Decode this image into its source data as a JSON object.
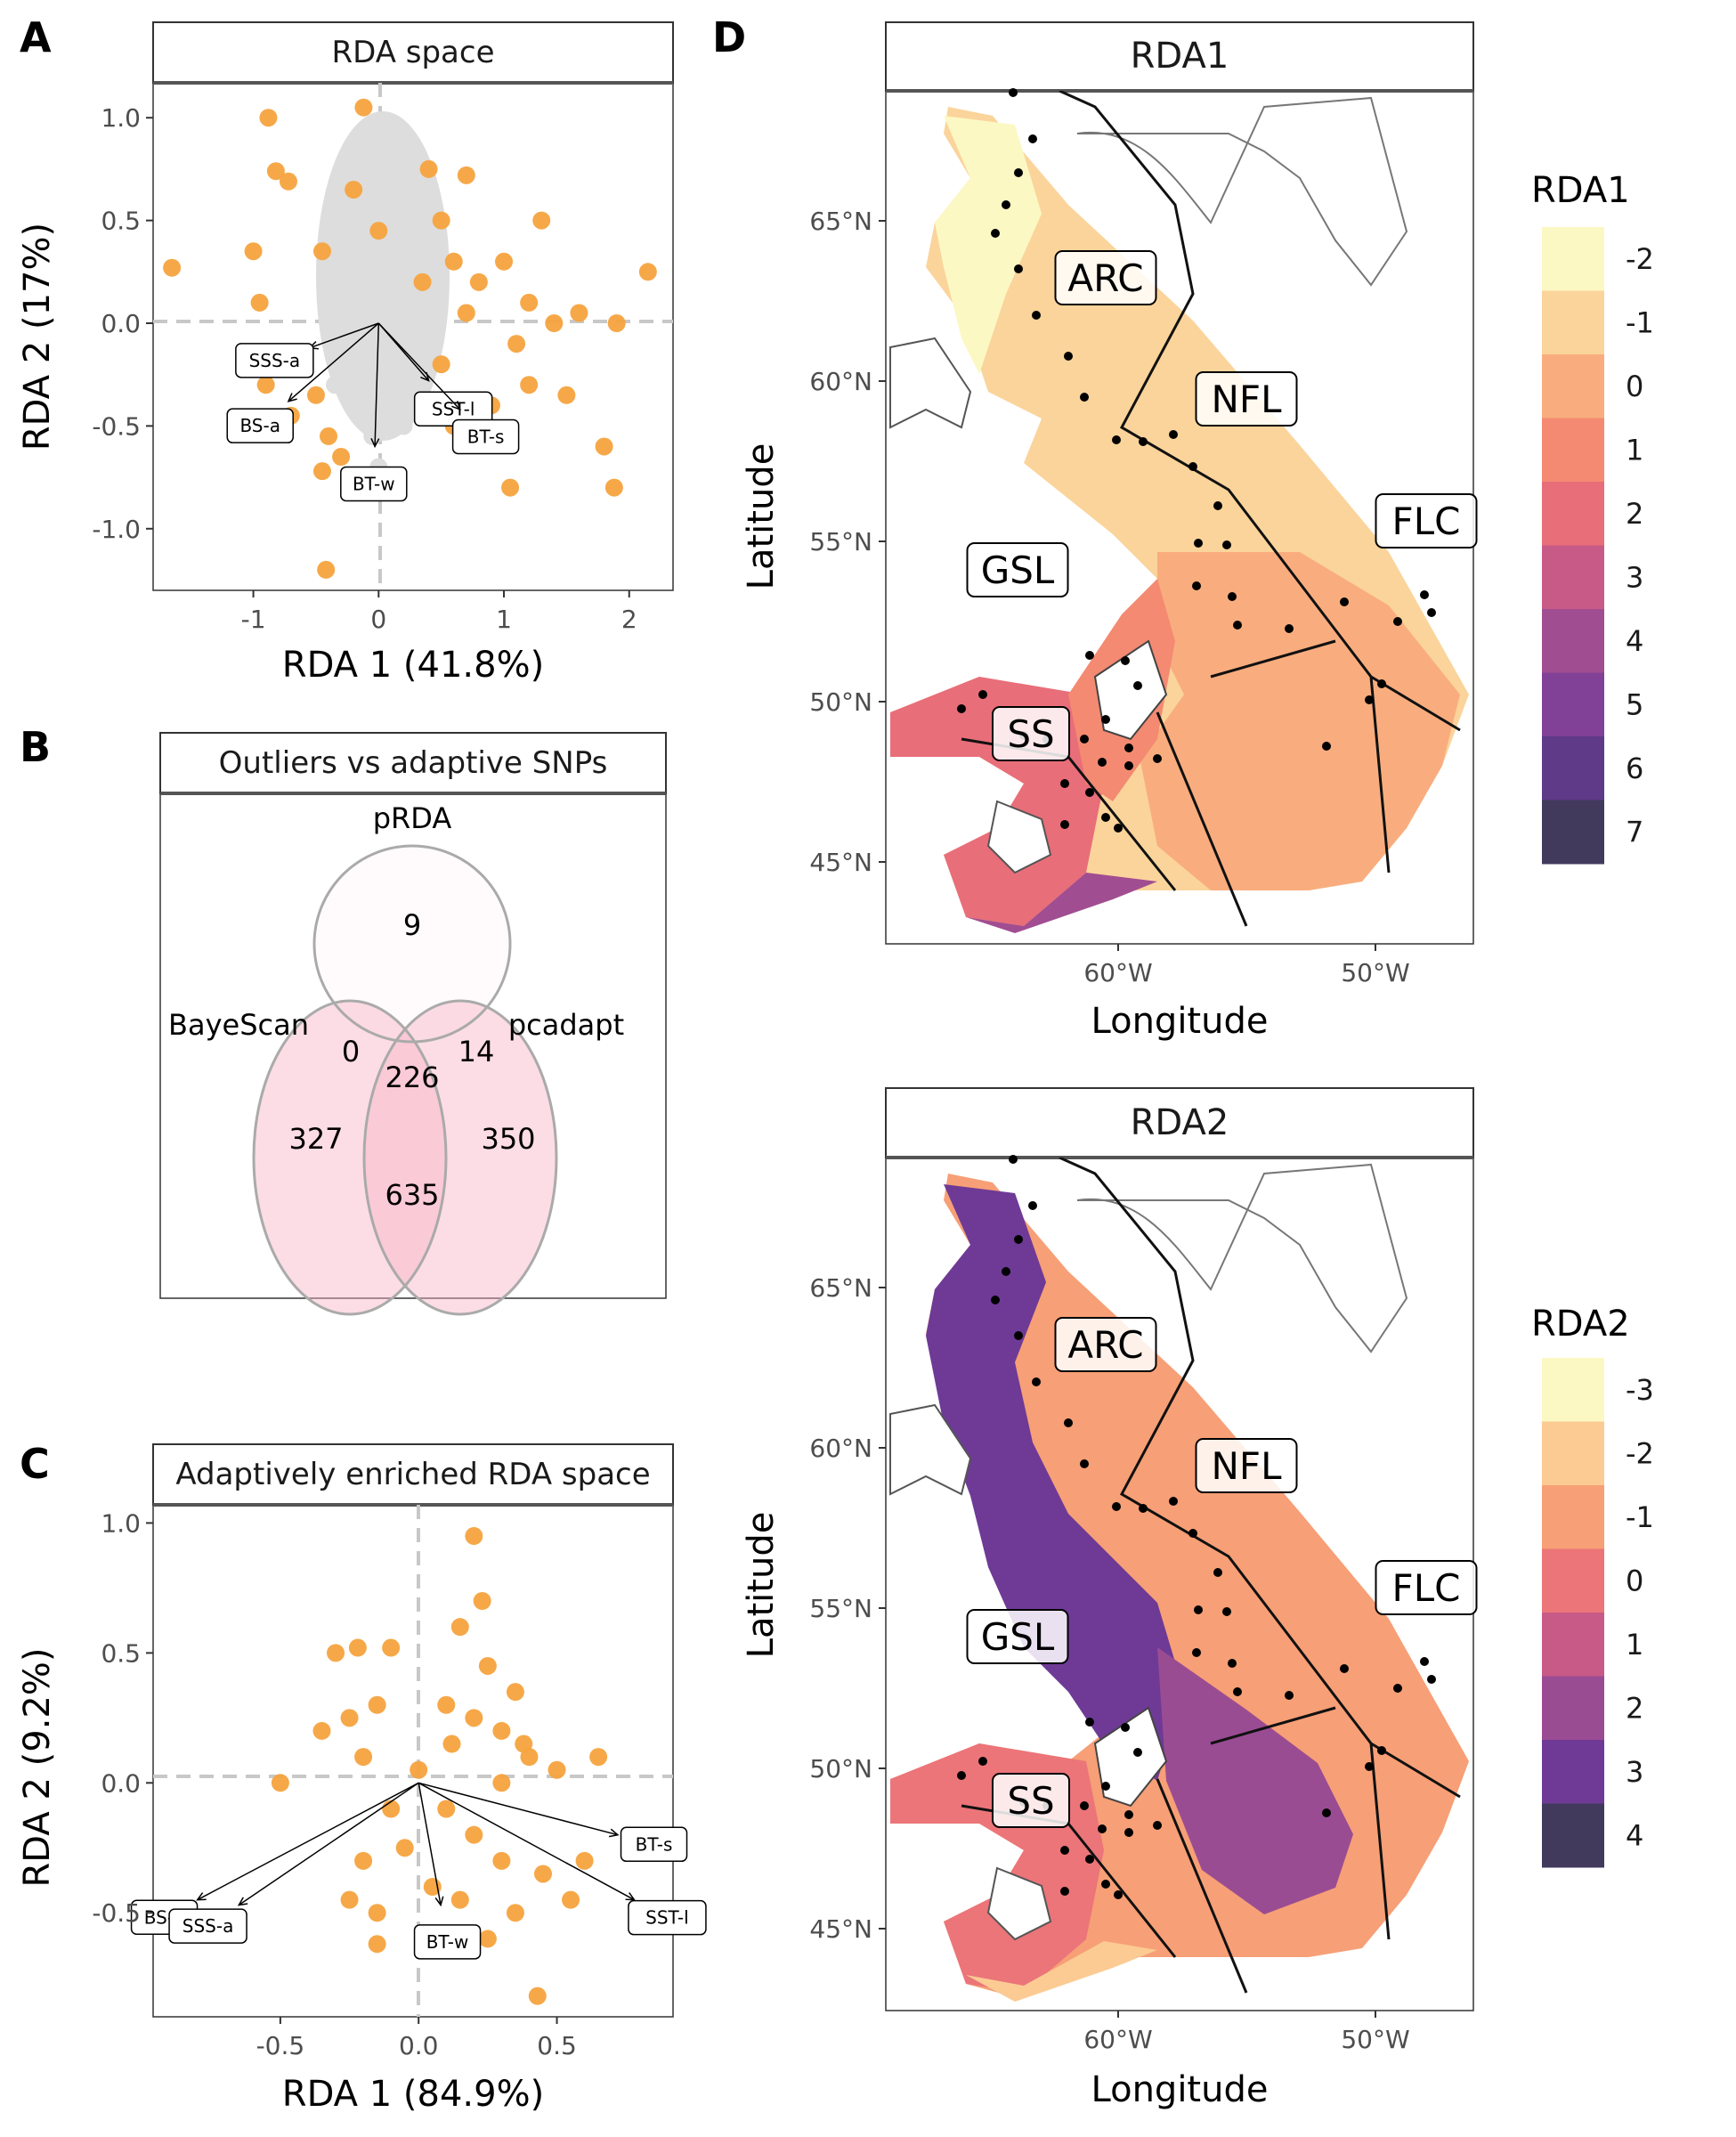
{
  "panel_letters": {
    "a": "A",
    "b": "B",
    "c": "C",
    "d": "D"
  },
  "colors": {
    "outlier": "#F5A33E",
    "neutral": "#DDDDDD",
    "venn_pink": "#F8B4C6",
    "land": "#ffffff",
    "ocean_bg": "#ffffff"
  },
  "chart_data": [
    {
      "id": "A",
      "type": "scatter",
      "title": "RDA space",
      "xlabel": "RDA 1 (41.8%)",
      "ylabel": "RDA 2 (17%)",
      "xlim": [
        -1.8,
        2.35
      ],
      "ylim": [
        -1.3,
        1.17
      ],
      "xticks": [
        "-1",
        "0",
        "1",
        "2"
      ],
      "xtick_values": [
        -1,
        0,
        1,
        2
      ],
      "yticks": [
        "-1.0",
        "-0.5",
        "0.0",
        "0.5",
        "1.0"
      ],
      "ytick_values": [
        -1.0,
        -0.5,
        0.0,
        0.5,
        1.0
      ],
      "grid": false,
      "series": [
        {
          "name": "",
          "role": "neutral",
          "points": [
            [
              0.0,
              0.1
            ],
            [
              0.1,
              -0.2
            ],
            [
              -0.2,
              0.3
            ],
            [
              0.2,
              0.4
            ],
            [
              -0.1,
              -0.4
            ],
            [
              0.05,
              0.55
            ],
            [
              -0.05,
              -0.55
            ],
            [
              0.15,
              0.0
            ],
            [
              -0.25,
              -0.1
            ],
            [
              0.25,
              -0.3
            ],
            [
              -0.15,
              0.6
            ],
            [
              0.3,
              0.2
            ],
            [
              -0.3,
              0.2
            ],
            [
              0.1,
              0.7
            ],
            [
              -0.1,
              0.8
            ],
            [
              0.2,
              -0.5
            ],
            [
              0.0,
              -0.7
            ],
            [
              0.1,
              0.9
            ],
            [
              -0.35,
              -0.3
            ],
            [
              0.35,
              0.5
            ]
          ]
        },
        {
          "name": "",
          "role": "outlier",
          "points": [
            [
              -1.65,
              0.27
            ],
            [
              -0.88,
              1.0
            ],
            [
              -0.82,
              0.74
            ],
            [
              -0.72,
              0.69
            ],
            [
              -0.45,
              0.35
            ],
            [
              -1.0,
              0.35
            ],
            [
              -0.95,
              0.1
            ],
            [
              -0.9,
              -0.3
            ],
            [
              -0.7,
              -0.45
            ],
            [
              -0.6,
              -0.15
            ],
            [
              -0.5,
              -0.35
            ],
            [
              -0.4,
              -0.55
            ],
            [
              -0.3,
              -0.65
            ],
            [
              -0.45,
              -0.72
            ],
            [
              -0.42,
              -1.2
            ],
            [
              0.4,
              0.75
            ],
            [
              0.7,
              0.72
            ],
            [
              0.5,
              0.5
            ],
            [
              0.6,
              0.3
            ],
            [
              0.8,
              0.2
            ],
            [
              1.0,
              0.3
            ],
            [
              1.2,
              0.1
            ],
            [
              1.4,
              0.0
            ],
            [
              1.6,
              0.05
            ],
            [
              1.9,
              0.0
            ],
            [
              2.15,
              0.25
            ],
            [
              1.3,
              0.5
            ],
            [
              1.1,
              -0.1
            ],
            [
              0.9,
              -0.4
            ],
            [
              1.2,
              -0.3
            ],
            [
              1.5,
              -0.35
            ],
            [
              1.8,
              -0.6
            ],
            [
              1.88,
              -0.8
            ],
            [
              1.05,
              -0.8
            ],
            [
              0.6,
              -0.5
            ],
            [
              0.5,
              -0.2
            ],
            [
              0.7,
              0.05
            ],
            [
              0.35,
              0.2
            ],
            [
              -0.12,
              1.05
            ],
            [
              -0.2,
              0.65
            ],
            [
              0.0,
              0.45
            ]
          ]
        }
      ],
      "arrows": [
        {
          "name": "SSS-a",
          "label": "SSS-a",
          "end": [
            -0.55,
            -0.12
          ]
        },
        {
          "name": "BS-a",
          "label": "BS-a",
          "end": [
            -0.72,
            -0.38
          ]
        },
        {
          "name": "BT-w",
          "label": "BT-w",
          "end": [
            -0.03,
            -0.6
          ]
        },
        {
          "name": "SST-l",
          "label": "SST-l",
          "end": [
            0.4,
            -0.28
          ]
        },
        {
          "name": "BT-s",
          "label": "BT-s",
          "end": [
            0.65,
            -0.42
          ]
        }
      ]
    },
    {
      "id": "B",
      "type": "venn",
      "title": "Outliers vs adaptive SNPs",
      "sets": [
        "pRDA",
        "BayeScan",
        "pcadapt"
      ],
      "regions": {
        "pRDA_only": "9",
        "BayeScan_only": "327",
        "pcadapt_only": "350",
        "pRDA_BayeScan": "0",
        "pRDA_pcadapt": "14",
        "BayeScan_pcadapt": "635",
        "all_three": "226"
      }
    },
    {
      "id": "C",
      "type": "scatter",
      "title": "Adaptively enriched RDA space",
      "xlabel": "RDA 1 (84.9%)",
      "ylabel": "RDA 2 (9.2%)",
      "xlim": [
        -0.96,
        0.92
      ],
      "ylim": [
        -0.9,
        1.07
      ],
      "xticks": [
        "-0.5",
        "0.0",
        "0.5"
      ],
      "xtick_values": [
        -0.5,
        0.0,
        0.5
      ],
      "yticks": [
        "-0.5",
        "0.0",
        "0.5",
        "1.0"
      ],
      "ytick_values": [
        -0.5,
        0.0,
        0.5,
        1.0
      ],
      "grid": false,
      "series": [
        {
          "name": "",
          "role": "outlier",
          "points": [
            [
              0.2,
              0.95
            ],
            [
              0.23,
              0.7
            ],
            [
              -0.3,
              0.5
            ],
            [
              -0.22,
              0.52
            ],
            [
              -0.1,
              0.52
            ],
            [
              -0.5,
              0.0
            ],
            [
              -0.15,
              0.3
            ],
            [
              -0.25,
              0.25
            ],
            [
              -0.2,
              0.1
            ],
            [
              -0.1,
              -0.1
            ],
            [
              -0.2,
              -0.3
            ],
            [
              -0.15,
              -0.5
            ],
            [
              -0.25,
              -0.45
            ],
            [
              -0.15,
              -0.62
            ],
            [
              0.1,
              0.3
            ],
            [
              0.2,
              0.25
            ],
            [
              0.3,
              0.2
            ],
            [
              0.35,
              0.35
            ],
            [
              0.4,
              0.1
            ],
            [
              0.5,
              0.05
            ],
            [
              0.65,
              0.1
            ],
            [
              0.6,
              -0.3
            ],
            [
              0.55,
              -0.45
            ],
            [
              0.45,
              -0.35
            ],
            [
              0.3,
              -0.3
            ],
            [
              0.2,
              -0.2
            ],
            [
              0.15,
              -0.45
            ],
            [
              0.25,
              -0.6
            ],
            [
              0.35,
              -0.5
            ],
            [
              0.43,
              -0.82
            ],
            [
              0.1,
              -0.1
            ],
            [
              0.0,
              0.05
            ],
            [
              0.25,
              0.45
            ],
            [
              0.15,
              0.6
            ],
            [
              -0.35,
              0.2
            ],
            [
              -0.05,
              -0.25
            ],
            [
              0.05,
              -0.4
            ],
            [
              0.3,
              0.0
            ],
            [
              0.38,
              0.15
            ],
            [
              0.12,
              0.15
            ]
          ]
        }
      ],
      "arrows": [
        {
          "name": "BS-a",
          "label": "BS-a",
          "end": [
            -0.8,
            -0.45
          ]
        },
        {
          "name": "SSS-a",
          "label": "SSS-a",
          "end": [
            -0.65,
            -0.47
          ]
        },
        {
          "name": "BT-w",
          "label": "BT-w",
          "end": [
            0.08,
            -0.47
          ]
        },
        {
          "name": "BT-s",
          "label": "BT-s",
          "end": [
            0.72,
            -0.2
          ]
        },
        {
          "name": "SST-l",
          "label": "SST-l",
          "end": [
            0.78,
            -0.45
          ]
        }
      ]
    },
    {
      "id": "D1",
      "type": "heatmap",
      "title": "RDA1",
      "xlabel": "Longitude",
      "ylabel": "Latitude",
      "xticks": [
        "60°W",
        "50°W"
      ],
      "yticks": [
        "65°N",
        "60°N",
        "55°N",
        "50°N",
        "45°N"
      ],
      "regions": [
        "ARC",
        "NFL",
        "FLC",
        "GSL",
        "SS"
      ],
      "legend_title": "RDA1",
      "legend_levels": [
        "-2",
        "-1",
        "0",
        "1",
        "2",
        "3",
        "4",
        "5",
        "6",
        "7"
      ],
      "legend_colors": [
        "#FCF8C4",
        "#FBD49B",
        "#F9AD7E",
        "#F48A72",
        "#E86E79",
        "#C85A87",
        "#A14D91",
        "#804196",
        "#5E3A88",
        "#413A5C"
      ]
    },
    {
      "id": "D2",
      "type": "heatmap",
      "title": "RDA2",
      "xlabel": "Longitude",
      "ylabel": "Latitude",
      "xticks": [
        "60°W",
        "50°W"
      ],
      "yticks": [
        "65°N",
        "60°N",
        "55°N",
        "50°N",
        "45°N"
      ],
      "regions": [
        "ARC",
        "NFL",
        "FLC",
        "GSL",
        "SS"
      ],
      "legend_title": "RDA2",
      "legend_levels": [
        "-3",
        "-2",
        "-1",
        "0",
        "1",
        "2",
        "3",
        "4"
      ],
      "legend_colors": [
        "#FCF8C4",
        "#FBCB93",
        "#F79F76",
        "#EB7579",
        "#C85A87",
        "#9A4C93",
        "#6E3A96",
        "#413A5C"
      ]
    }
  ]
}
